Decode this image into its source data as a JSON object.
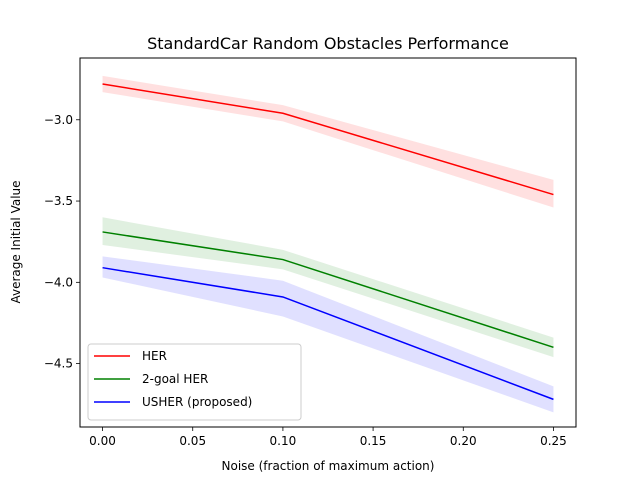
{
  "chart_data": {
    "type": "line",
    "title": "StandardCar Random Obstacles Performance",
    "xlabel": "Noise (fraction of maximum action)",
    "ylabel": "Average Initial Value",
    "xlim": [
      -0.0125,
      0.2625
    ],
    "ylim": [
      -4.89,
      -2.62
    ],
    "x_ticks": [
      0.0,
      0.05,
      0.1,
      0.15,
      0.2,
      0.25
    ],
    "x_tick_labels": [
      "0.00",
      "0.05",
      "0.10",
      "0.15",
      "0.20",
      "0.25"
    ],
    "y_ticks": [
      -3.0,
      -3.5,
      -4.0,
      -4.5
    ],
    "y_tick_labels": [
      "−3.0",
      "−3.5",
      "−4.0",
      "−4.5"
    ],
    "grid": false,
    "legend_position": "lower-left",
    "x": [
      0.0,
      0.1,
      0.25
    ],
    "series": [
      {
        "name": "HER",
        "color": "#ff0000",
        "values": [
          -2.78,
          -2.96,
          -3.46
        ],
        "lower": [
          -2.83,
          -3.01,
          -3.54
        ],
        "upper": [
          -2.73,
          -2.91,
          -3.37
        ]
      },
      {
        "name": "2-goal HER",
        "color": "#008000",
        "values": [
          -3.69,
          -3.86,
          -4.4
        ],
        "lower": [
          -3.77,
          -3.92,
          -4.46
        ],
        "upper": [
          -3.6,
          -3.8,
          -4.34
        ]
      },
      {
        "name": "USHER (proposed)",
        "color": "#0000ff",
        "values": [
          -3.91,
          -4.09,
          -4.72
        ],
        "lower": [
          -3.97,
          -4.21,
          -4.8
        ],
        "upper": [
          -3.84,
          -3.99,
          -4.64
        ]
      }
    ]
  }
}
